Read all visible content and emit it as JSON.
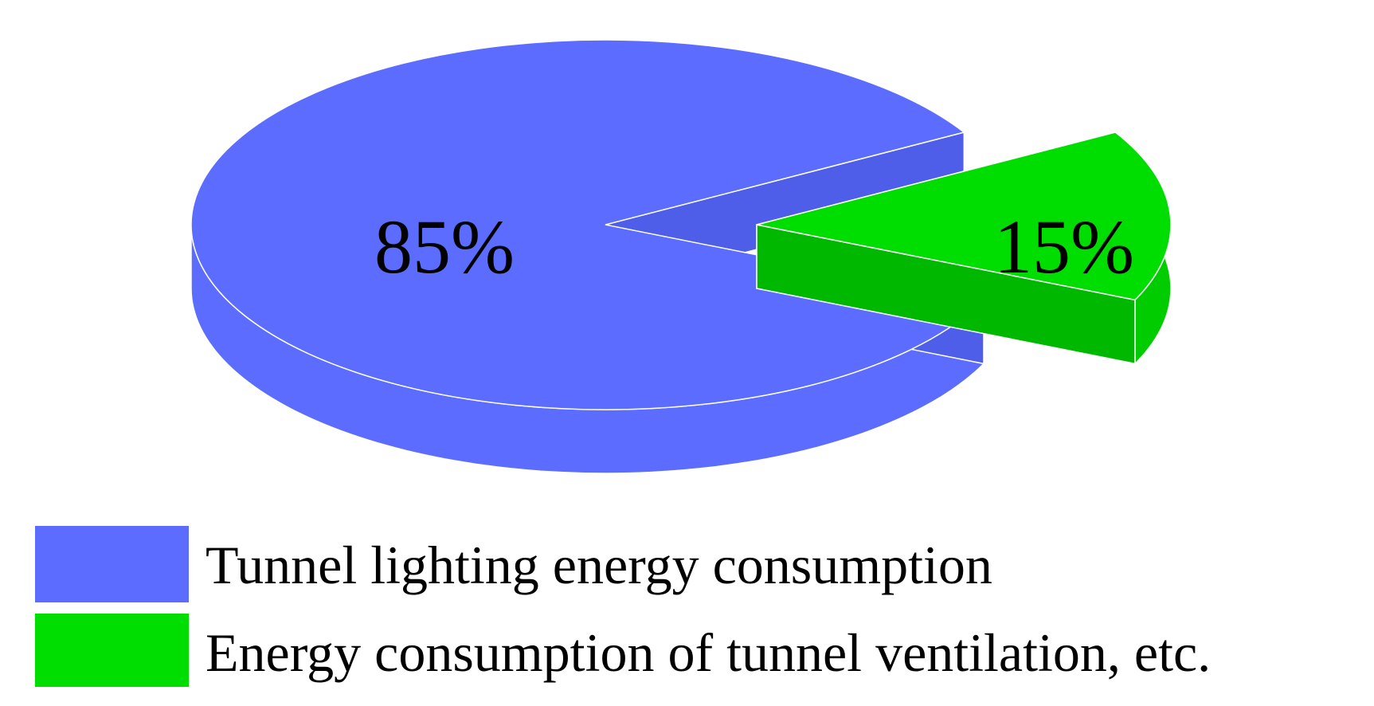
{
  "chart_data": {
    "type": "pie",
    "style": "3d-exploded",
    "slices": [
      {
        "label": "Tunnel lighting energy consumption",
        "value": 85,
        "display": "85%",
        "color": "#5B6CFF",
        "side_color": "#5B6CFF"
      },
      {
        "label": "Energy consumption of tunnel ventilation, etc.",
        "value": 15,
        "display": "15%",
        "color": "#00DD00",
        "side_color": "#00CC00"
      }
    ],
    "legend_position": "bottom-left"
  }
}
